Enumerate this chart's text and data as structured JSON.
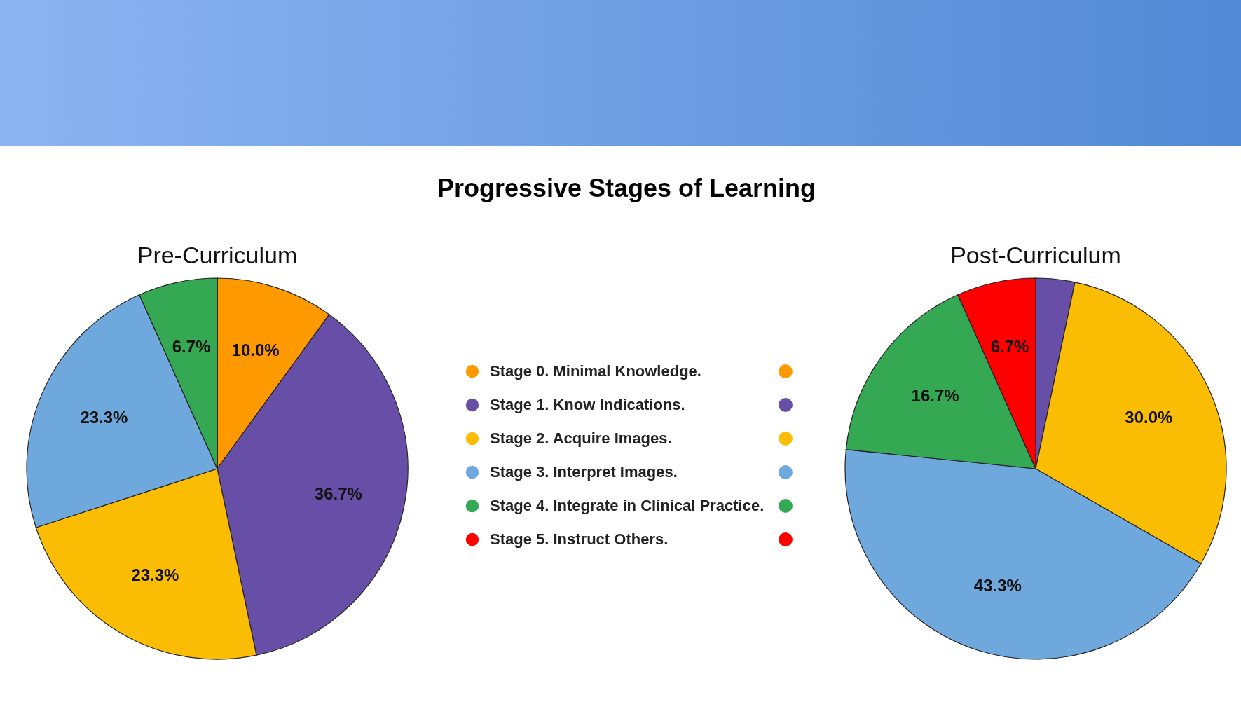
{
  "chart_data": [
    {
      "type": "other",
      "title": "Progressive Stages of Learning"
    },
    {
      "type": "pie",
      "title": "Pre-Curriculum",
      "legend": "right",
      "categories": [
        "Stage 0. Minimal Knowledge.",
        "Stage 1. Know Indications.",
        "Stage 2. Acquire Images.",
        "Stage 3. Interpret Images.",
        "Stage 4. Integrate in Clinical Practice.",
        "Stage 5. Instruct Others."
      ],
      "values": [
        10.0,
        36.7,
        23.3,
        23.3,
        6.7,
        0
      ],
      "value_labels": [
        "10.0%",
        "36.7%",
        "23.3%",
        "23.3%",
        "6.7%",
        null
      ],
      "colors": [
        "#ff9900",
        "#674ea7",
        "#fbbc04",
        "#6fa8dc",
        "#34a853",
        "#ff0000"
      ]
    },
    {
      "type": "pie",
      "title": "Post-Curriculum",
      "categories": [
        null,
        null,
        null,
        null,
        null,
        null
      ],
      "values": [
        0,
        3.3,
        30.0,
        43.3,
        16.7,
        6.7
      ],
      "value_labels": [
        null,
        null,
        "30.0%",
        "43.3%",
        "16.7%",
        "6.7%"
      ],
      "colors": [
        "#ff9900",
        "#674ea7",
        "#fbbc04",
        "#6fa8dc",
        "#34a853",
        "#ff0000"
      ]
    }
  ]
}
